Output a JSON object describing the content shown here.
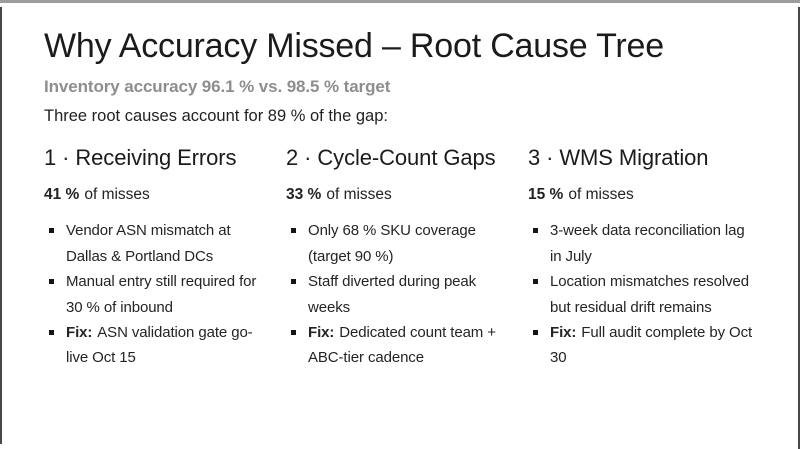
{
  "colors": {
    "subtitle_gray": "#8e8e8e",
    "text_dark": "#1b1b1b",
    "frame_top_bar": "#9c9c9c",
    "frame_side_strip": "#48484a"
  },
  "slide": {
    "title": "Why Accuracy Missed – Root Cause Tree",
    "subtitle": "Inventory accuracy 96.1 % vs. 98.5 % target",
    "intro": "Three root causes account for 89 % of the gap:",
    "columns": [
      {
        "heading": "1 · Receiving Errors",
        "stat": {
          "value": "41 %",
          "label": "of misses"
        },
        "bullets": [
          {
            "prefix": "",
            "text": "Vendor ASN mismatch at Dallas & Portland DCs"
          },
          {
            "prefix": "",
            "text": "Manual entry still required for 30 % of inbound"
          },
          {
            "prefix": "Fix:",
            "text": "ASN validation gate go-live Oct 15"
          }
        ]
      },
      {
        "heading": "2 · Cycle-Count Gaps",
        "stat": {
          "value": "33 %",
          "label": "of misses"
        },
        "bullets": [
          {
            "prefix": "",
            "text": "Only 68 % SKU coverage (target 90 %)"
          },
          {
            "prefix": "",
            "text": "Staff diverted during peak weeks"
          },
          {
            "prefix": "Fix:",
            "text": "Dedicated count team + ABC-tier cadence"
          }
        ]
      },
      {
        "heading": "3 · WMS Migration",
        "stat": {
          "value": "15 %",
          "label": "of misses"
        },
        "bullets": [
          {
            "prefix": "",
            "text": "3-week data reconciliation lag in July"
          },
          {
            "prefix": "",
            "text": "Location mismatches resolved but residual drift remains"
          },
          {
            "prefix": "Fix:",
            "text": "Full audit complete by Oct 30"
          }
        ]
      }
    ]
  }
}
